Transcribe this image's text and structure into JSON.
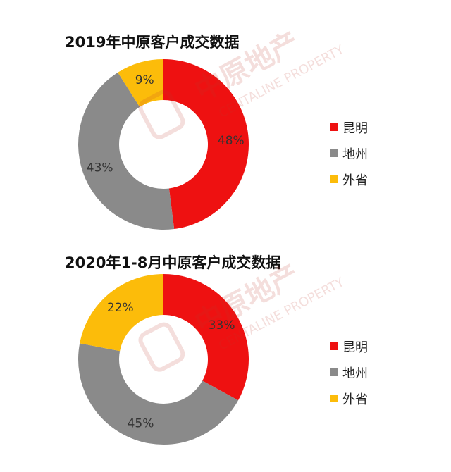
{
  "colors": {
    "昆明": "#ee1111",
    "地州": "#8a8a8a",
    "外省": "#fcbc0a"
  },
  "legend": [
    "昆明",
    "地州",
    "外省"
  ],
  "watermark": {
    "cn": "中原地产",
    "en": "CENTALINE PROPERTY",
    "logo": "原"
  },
  "chart_data": [
    {
      "type": "pie",
      "title": "2019年中原客户成交数据",
      "categories": [
        "昆明",
        "地州",
        "外省"
      ],
      "values": [
        48,
        43,
        9
      ],
      "labels": [
        "48%",
        "43%",
        "9%"
      ],
      "donut": true,
      "legend_position": "right"
    },
    {
      "type": "pie",
      "title": "2020年1-8月中原客户成交数据",
      "categories": [
        "昆明",
        "地州",
        "外省"
      ],
      "values": [
        33,
        45,
        22
      ],
      "labels": [
        "33%",
        "45%",
        "22%"
      ],
      "donut": true,
      "legend_position": "right"
    }
  ]
}
